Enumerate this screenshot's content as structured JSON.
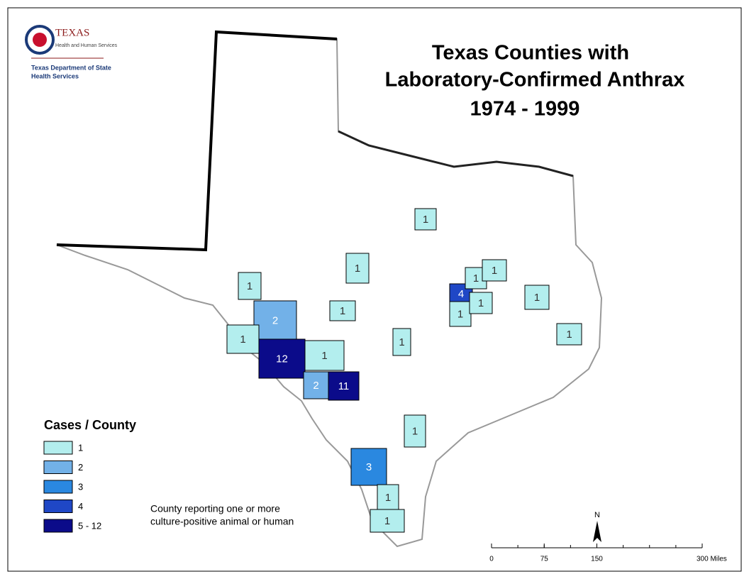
{
  "header": {
    "agency": "TEXAS",
    "agency_sub": "Health and Human Services",
    "department_line1": "Texas Department of State",
    "department_line2": "Health Services"
  },
  "title": {
    "line1": "Texas Counties with",
    "line2": "Laboratory-Confirmed Anthrax",
    "line3": "1974 - 1999"
  },
  "counties": [
    {
      "value": 1,
      "color": "#b3eeee"
    },
    {
      "value": 1,
      "color": "#b3eeee"
    },
    {
      "value": 1,
      "color": "#b3eeee"
    },
    {
      "value": 2,
      "color": "#72b1e8"
    },
    {
      "value": 1,
      "color": "#b3eeee"
    },
    {
      "value": 1,
      "color": "#b3eeee"
    },
    {
      "value": 12,
      "color": "#0b0b8a"
    },
    {
      "value": 1,
      "color": "#b3eeee"
    },
    {
      "value": 2,
      "color": "#72b1e8"
    },
    {
      "value": 11,
      "color": "#0b0b8a"
    },
    {
      "value": 1,
      "color": "#b3eeee"
    },
    {
      "value": 4,
      "color": "#1f47c6"
    },
    {
      "value": 1,
      "color": "#b3eeee"
    },
    {
      "value": 1,
      "color": "#b3eeee"
    },
    {
      "value": 1,
      "color": "#b3eeee"
    },
    {
      "value": 1,
      "color": "#b3eeee"
    },
    {
      "value": 1,
      "color": "#b3eeee"
    },
    {
      "value": 1,
      "color": "#b3eeee"
    },
    {
      "value": 1,
      "color": "#b3eeee"
    },
    {
      "value": 3,
      "color": "#2a88e0"
    },
    {
      "value": 1,
      "color": "#b3eeee"
    },
    {
      "value": 1,
      "color": "#b3eeee"
    }
  ],
  "legend": {
    "title": "Cases / County",
    "items": [
      {
        "label": "1",
        "color": "#b3eeee"
      },
      {
        "label": "2",
        "color": "#72b1e8"
      },
      {
        "label": "3",
        "color": "#2a88e0"
      },
      {
        "label": "4",
        "color": "#1f47c6"
      },
      {
        "label": "5 - 12",
        "color": "#0b0b8a"
      }
    ]
  },
  "note": {
    "line1": "County reporting one or more",
    "line2": "culture-positive animal or human"
  },
  "north": "N",
  "scale": {
    "ticks": [
      0,
      75,
      150,
      {
        "value": 300,
        "label": "300 Miles"
      }
    ]
  }
}
